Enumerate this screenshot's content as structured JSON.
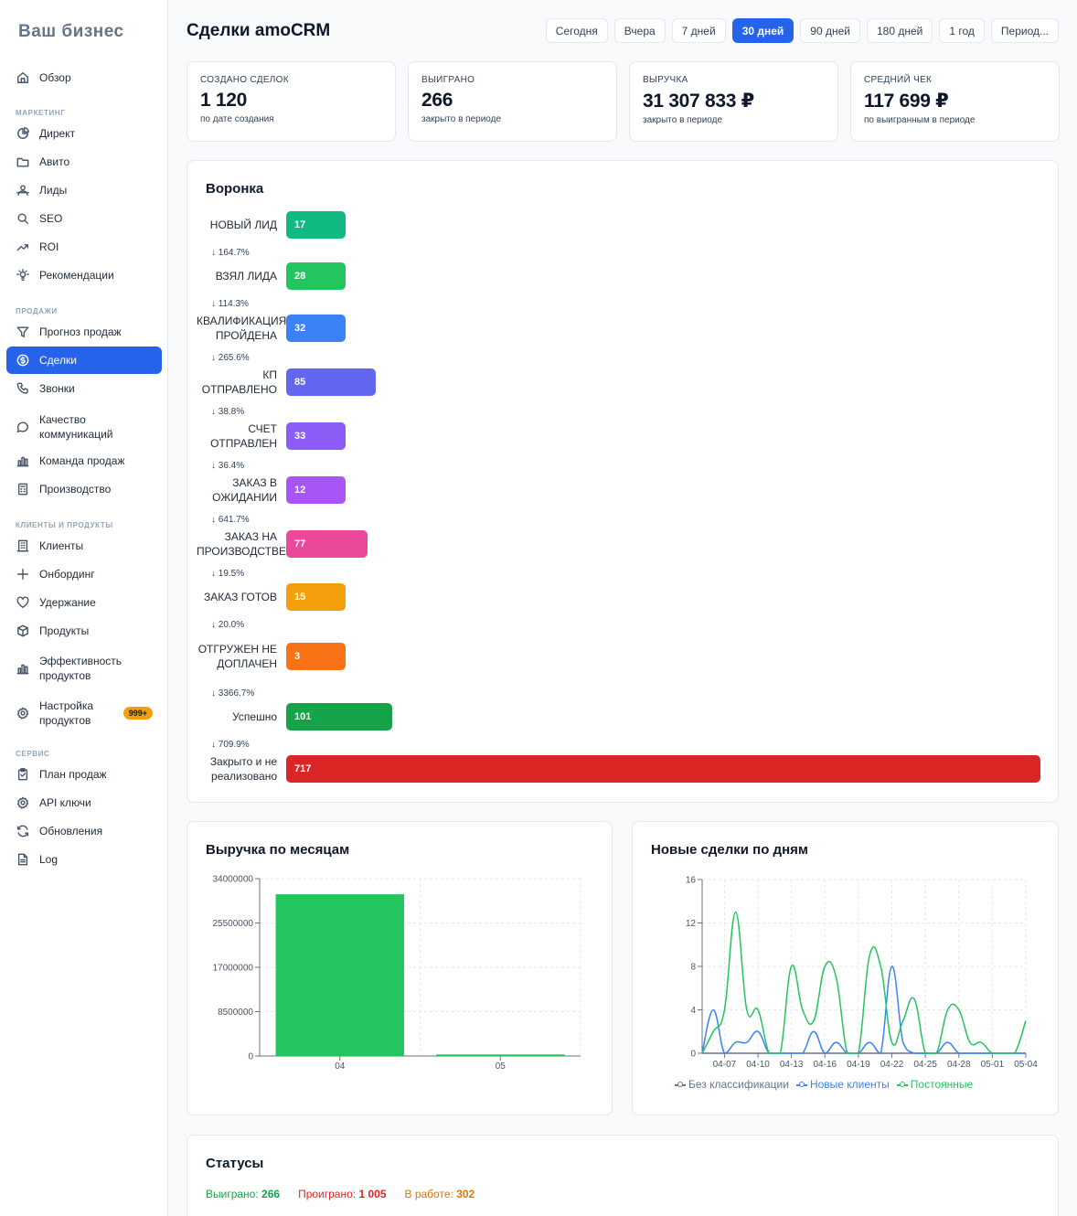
{
  "brand": "Ваш бизнес",
  "sidebar": {
    "items": [
      {
        "label": "Обзор",
        "icon": "home-icon",
        "section": null
      },
      {
        "section_label": "МАРКЕТИНГ"
      },
      {
        "label": "Директ",
        "icon": "pie-chart-icon"
      },
      {
        "label": "Авито",
        "icon": "folder-icon"
      },
      {
        "label": "Лиды",
        "icon": "users-icon"
      },
      {
        "label": "SEO",
        "icon": "search-icon"
      },
      {
        "label": "ROI",
        "icon": "trend-up-icon"
      },
      {
        "label": "Рекомендации",
        "icon": "lightbulb-icon"
      },
      {
        "section_label": "ПРОДАЖИ"
      },
      {
        "label": "Прогноз продаж",
        "icon": "filter-icon"
      },
      {
        "label": "Сделки",
        "icon": "dollar-circle-icon",
        "active": true
      },
      {
        "label": "Звонки",
        "icon": "phone-icon"
      },
      {
        "label": "Качество коммуникаций",
        "icon": "chat-bubble-icon"
      },
      {
        "label": "Команда продаж",
        "icon": "bar-chart-icon"
      },
      {
        "label": "Производство",
        "icon": "calculator-icon"
      },
      {
        "section_label": "КЛИЕНТЫ И ПРОДУКТЫ"
      },
      {
        "label": "Клиенты",
        "icon": "building-icon"
      },
      {
        "label": "Онбординг",
        "icon": "plus-icon"
      },
      {
        "label": "Удержание",
        "icon": "heart-icon"
      },
      {
        "label": "Продукты",
        "icon": "box-icon"
      },
      {
        "label": "Эффективность продуктов",
        "icon": "bar-chart-icon"
      },
      {
        "label": "Настройка продуктов",
        "icon": "settings-icon",
        "badge": "999+"
      },
      {
        "section_label": "СЕРВИС"
      },
      {
        "label": "План продаж",
        "icon": "clipboard-icon"
      },
      {
        "label": "API ключи",
        "icon": "gear-icon"
      },
      {
        "label": "Обновления",
        "icon": "refresh-icon"
      },
      {
        "label": "Log",
        "icon": "file-icon"
      }
    ]
  },
  "header": {
    "title": "Сделки amoCRM",
    "periods": [
      "Сегодня",
      "Вчера",
      "7 дней",
      "30 дней",
      "90 дней",
      "180 дней",
      "1 год",
      "Период..."
    ],
    "active_period": "30 дней"
  },
  "kpis": [
    {
      "label": "Создано сделок",
      "value": "1 120",
      "sub": "по дате создания"
    },
    {
      "label": "Выиграно",
      "value": "266",
      "sub": "закрыто в периоде"
    },
    {
      "label": "Выручка",
      "value": "31 307 833 ₽",
      "sub": "закрыто в периоде"
    },
    {
      "label": "Средний чек",
      "value": "117 699 ₽",
      "sub": "по выигранным в периоде"
    }
  ],
  "funnel": {
    "title": "Воронка",
    "stages": [
      {
        "label": "НОВЫЙ ЛИД",
        "value": 17,
        "color": "#10b981"
      },
      {
        "label": "ВЗЯЛ ЛИДА",
        "value": 28,
        "color": "#22c55e"
      },
      {
        "label": "КВАЛИФИКАЦИЯ ПРОЙДЕНА",
        "value": 32,
        "color": "#3b82f6"
      },
      {
        "label": "КП ОТПРАВЛЕНО",
        "value": 85,
        "color": "#6366f1"
      },
      {
        "label": "СЧЕТ ОТПРАВЛЕН",
        "value": 33,
        "color": "#8b5cf6"
      },
      {
        "label": "ЗАКАЗ В ОЖИДАНИИ",
        "value": 12,
        "color": "#a855f7"
      },
      {
        "label": "ЗАКАЗ НА ПРОИЗВОДСТВЕ",
        "value": 77,
        "color": "#ec4899"
      },
      {
        "label": "ЗАКАЗ ГОТОВ",
        "value": 15,
        "color": "#f59e0b"
      },
      {
        "label": "ОТГРУЖЕН НЕ ДОПЛАЧЕН",
        "value": 3,
        "color": "#f97316"
      },
      {
        "label": "Успешно",
        "value": 101,
        "color": "#16a34a"
      },
      {
        "label": "Закрыто и не реализовано",
        "value": 717,
        "color": "#dc2626"
      }
    ],
    "conversions": [
      "↓ 164.7%",
      "↓ 114.3%",
      "↓ 265.6%",
      "↓ 38.8%",
      "↓ 36.4%",
      "↓ 641.7%",
      "↓ 19.5%",
      "↓ 20.0%",
      "↓ 3366.7%",
      "↓ 709.9%"
    ]
  },
  "chart_data": [
    {
      "type": "bar",
      "title": "Выручка по месяцам",
      "categories": [
        "04",
        "05"
      ],
      "values": [
        31000000,
        300000
      ],
      "yticks": [
        "0",
        "8500000",
        "17000000",
        "25500000",
        "34000000"
      ],
      "ylim": [
        0,
        34000000
      ],
      "color": "#22c55e",
      "grid": true
    },
    {
      "type": "line",
      "title": "Новые сделки по дням",
      "x": [
        "04-05",
        "04-06",
        "04-07",
        "04-08",
        "04-09",
        "04-10",
        "04-11",
        "04-12",
        "04-13",
        "04-14",
        "04-15",
        "04-16",
        "04-17",
        "04-18",
        "04-19",
        "04-20",
        "04-21",
        "04-22",
        "04-23",
        "04-24",
        "04-25",
        "04-26",
        "04-27",
        "04-28",
        "04-29",
        "04-30",
        "05-01",
        "05-02",
        "05-03",
        "05-04"
      ],
      "xticks": [
        "04-07",
        "04-10",
        "04-13",
        "04-16",
        "04-19",
        "04-22",
        "04-25",
        "04-28",
        "05-01",
        "05-04"
      ],
      "yticks": [
        "0",
        "4",
        "8",
        "12",
        "16"
      ],
      "ylim": [
        0,
        16
      ],
      "grid": true,
      "legend_position": "bottom",
      "series": [
        {
          "name": "Без классификации",
          "color": "#64748b",
          "values": [
            0,
            0,
            0,
            0,
            0,
            0,
            0,
            0,
            0,
            0,
            0,
            0,
            0,
            0,
            0,
            0,
            0,
            0,
            0,
            0,
            0,
            0,
            0,
            0,
            0,
            0,
            0,
            0,
            0,
            0
          ]
        },
        {
          "name": "Новые клиенты",
          "color": "#3b82f6",
          "values": [
            0,
            4,
            0,
            1,
            1,
            2,
            0,
            0,
            0,
            0,
            2,
            0,
            1,
            0,
            0,
            1,
            0,
            8,
            1,
            0,
            0,
            0,
            1,
            0,
            0,
            0,
            0,
            0,
            0,
            0
          ]
        },
        {
          "name": "Постоянные",
          "color": "#22c55e",
          "values": [
            0,
            2,
            4,
            13,
            4,
            4,
            0,
            0,
            8,
            4,
            3,
            8,
            7,
            0,
            0,
            9,
            8,
            1,
            3,
            5,
            0,
            0,
            4,
            4,
            1,
            1,
            0,
            0,
            0,
            3
          ]
        }
      ]
    }
  ],
  "statuses": {
    "title": "Статусы",
    "items": [
      {
        "label": "Выиграно:",
        "value": "266",
        "color": "#16a34a"
      },
      {
        "label": "Проиграно:",
        "value": "1 005",
        "color": "#dc2626"
      },
      {
        "label": "В работе:",
        "value": "302",
        "color": "#d97706"
      }
    ]
  }
}
